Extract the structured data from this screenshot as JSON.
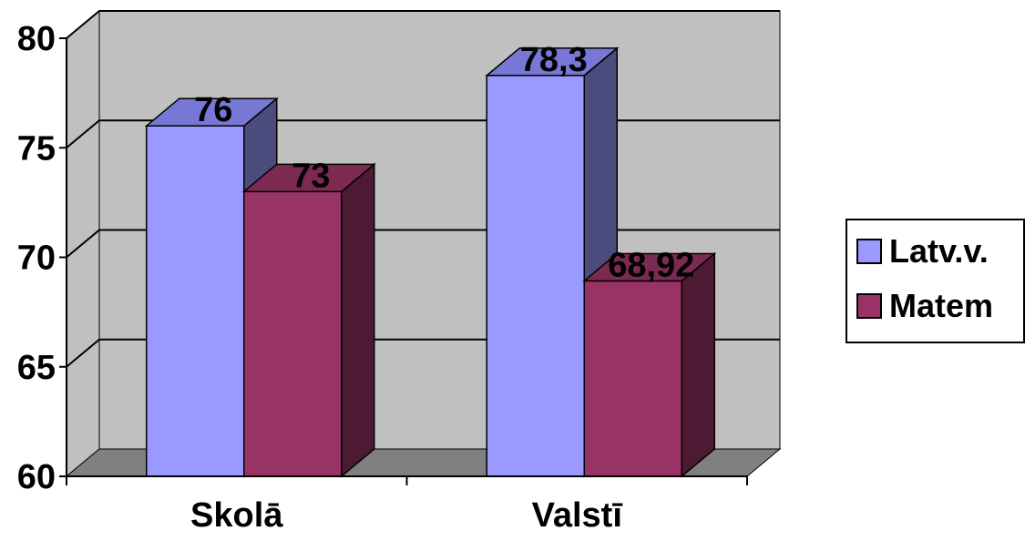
{
  "chart_data": {
    "type": "bar",
    "categories": [
      "Skolā",
      "Valstī"
    ],
    "series": [
      {
        "name": "Latv.v.",
        "values": [
          76,
          78.3
        ],
        "labels": [
          "76",
          "78,3"
        ]
      },
      {
        "name": "Matem",
        "values": [
          73,
          68.92
        ],
        "labels": [
          "73",
          "68,92"
        ]
      }
    ],
    "ylim": [
      60,
      80
    ],
    "yticks": [
      60,
      65,
      70,
      75,
      80
    ],
    "grid": true,
    "three_d": true,
    "legend_position": "right",
    "colors": {
      "series_fronts": [
        "#9999FF",
        "#993366"
      ],
      "series_sides": [
        "#4B4B7E",
        "#4C1A32"
      ],
      "series_tops": [
        "#7777D6",
        "#7D2A52"
      ],
      "wall": "#C0C0C0",
      "floor": "#808080",
      "gridline": "#000000"
    }
  }
}
